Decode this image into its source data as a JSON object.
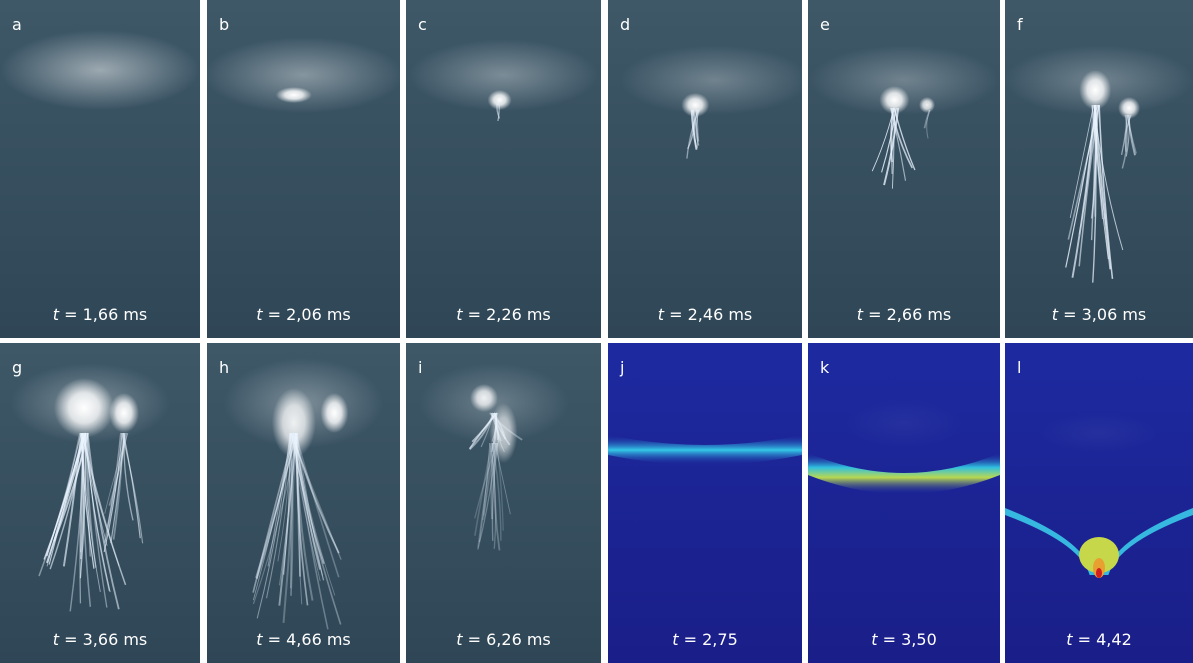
{
  "panels": [
    {
      "label": "a",
      "symbol": "t",
      "rest": "= 1,66 ms"
    },
    {
      "label": "b",
      "symbol": "t",
      "rest": "= 2,06 ms"
    },
    {
      "label": "c",
      "symbol": "t",
      "rest": "= 2,26 ms"
    },
    {
      "label": "d",
      "symbol": "t",
      "rest": "= 2,46 ms"
    },
    {
      "label": "e",
      "symbol": "t",
      "rest": "= 2,66 ms"
    },
    {
      "label": "f",
      "symbol": "t",
      "rest": "= 3,06 ms"
    },
    {
      "label": "g",
      "symbol": "t",
      "rest": "= 3,66 ms"
    },
    {
      "label": "h",
      "symbol": "t",
      "rest": "= 4,66 ms"
    },
    {
      "label": "i",
      "symbol": "t",
      "rest": "= 6,26 ms"
    },
    {
      "label": "j",
      "symbol": "t",
      "rest": "= 2,75"
    },
    {
      "label": "k",
      "symbol": "t",
      "rest": "= 3,50"
    },
    {
      "label": "l",
      "symbol": "t",
      "rest": "= 4,42"
    }
  ]
}
